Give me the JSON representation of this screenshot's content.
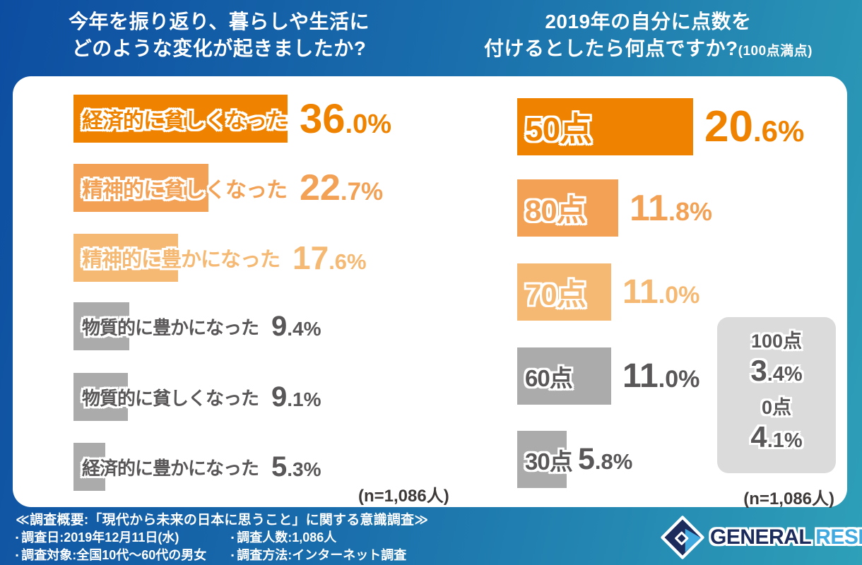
{
  "chart_data": [
    {
      "type": "bar",
      "orientation": "horizontal",
      "title": "今年を振り返り、暮らしや生活にどのような変化が起きましたか?",
      "categories": [
        "経済的に貧しくなった",
        "精神的に貧しくなった",
        "精神的に豊かになった",
        "物質的に豊かになった",
        "物質的に貧しくなった",
        "経済的に豊かになった"
      ],
      "values": [
        36.0,
        22.7,
        17.6,
        9.4,
        9.1,
        5.3
      ],
      "unit": "%",
      "n_label": "(n=1,086人)",
      "bar_colors": [
        "#EF8300",
        "#F2A155",
        "#F5B973",
        "#ABABAB",
        "#ABABAB",
        "#ABABAB"
      ]
    },
    {
      "type": "bar",
      "orientation": "horizontal",
      "title": "2019年の自分に点数を付けるとしたら何点ですか?(100点満点)",
      "categories": [
        "50点",
        "80点",
        "70点",
        "60点",
        "30点"
      ],
      "values": [
        20.6,
        11.8,
        11.0,
        11.0,
        5.8
      ],
      "annotations": [
        {
          "label": "100点",
          "value": 3.4
        },
        {
          "label": "0点",
          "value": 4.1
        }
      ],
      "unit": "%",
      "n_label": "(n=1,086人)",
      "bar_colors": [
        "#EF8300",
        "#F2A155",
        "#F5B973",
        "#ABABAB",
        "#ABABAB"
      ]
    }
  ],
  "header": {
    "left_title_line1": "今年を振り返り、暮らしや生活に",
    "left_title_line2": "どのような変化が起きましたか?",
    "right_title_line1": "2019年の自分に点数を",
    "right_title_line2": "付けるとしたら何点ですか?",
    "right_title_suffix": "(100点満点)"
  },
  "left_chart": {
    "bars": [
      {
        "label": "経済的に貧しくなった",
        "pct": 36.0,
        "int": "36",
        "dec": ".0%",
        "bar_color": "#EF8300",
        "text_color": "#EF8300"
      },
      {
        "label": "精神的に貧しくなった",
        "pct": 22.7,
        "int": "22",
        "dec": ".7%",
        "bar_color": "#F2A155",
        "text_color": "#F2A155"
      },
      {
        "label": "精神的に豊かになった",
        "pct": 17.6,
        "int": "17",
        "dec": ".6%",
        "bar_color": "#F5B973",
        "text_color": "#F5B973"
      },
      {
        "label": "物質的に豊かになった",
        "pct": 9.4,
        "int": "9",
        "dec": ".4%",
        "bar_color": "#ABABAB",
        "text_color": "#595757"
      },
      {
        "label": "物質的に貧しくなった",
        "pct": 9.1,
        "int": "9",
        "dec": ".1%",
        "bar_color": "#ABABAB",
        "text_color": "#595757"
      },
      {
        "label": "経済的に豊かになった",
        "pct": 5.3,
        "int": "5",
        "dec": ".3%",
        "bar_color": "#ABABAB",
        "text_color": "#595757"
      }
    ],
    "n_label": "(n=1,086人)"
  },
  "right_chart": {
    "bars": [
      {
        "label": "50点",
        "pct": 20.6,
        "int": "20",
        "dec": ".6%",
        "bar_color": "#EF8300",
        "text_color": "#EF8300"
      },
      {
        "label": "80点",
        "pct": 11.8,
        "int": "11",
        "dec": ".8%",
        "bar_color": "#F2A155",
        "text_color": "#F2A155"
      },
      {
        "label": "70点",
        "pct": 11.0,
        "int": "11",
        "dec": ".0%",
        "bar_color": "#F5B973",
        "text_color": "#F5B973"
      },
      {
        "label": "60点",
        "pct": 11.0,
        "int": "11",
        "dec": ".0%",
        "bar_color": "#ABABAB",
        "text_color": "#595757"
      },
      {
        "label": "30点",
        "pct": 5.8,
        "int": "5",
        "dec": ".8%",
        "bar_color": "#ABABAB",
        "text_color": "#595757"
      }
    ],
    "side_box": {
      "bg": "#DBDBDB",
      "text_color": "#595757",
      "items": [
        {
          "label": "100点",
          "int": "3",
          "dec": ".4%"
        },
        {
          "label": "0点",
          "int": "4",
          "dec": ".1%"
        }
      ]
    },
    "n_label": "(n=1,086人)"
  },
  "footer": {
    "headline": "≪調査概要:「現代から未来の日本に思うこと」に関する意識調査≫",
    "rows": [
      [
        {
          "bullet": "▪",
          "text": "調査日:2019年12月11日(水)"
        },
        {
          "bullet": "▪",
          "text": "調査人数:1,086人"
        }
      ],
      [
        {
          "bullet": "▪",
          "text": "調査対象:全国10代〜60代の男女"
        },
        {
          "bullet": "▪",
          "text": "調査方法:インターネット調査"
        }
      ]
    ]
  },
  "logo": {
    "word1": "GENERAL",
    "word2": "RESEARCH",
    "color1": "#1B2B5C",
    "color2": "#3FA9E0"
  },
  "colors": {
    "bg_start": "#0D4DA1",
    "bg_mid": "#1A6FAC",
    "bg_end": "#2EA0B8",
    "orange_dark": "#EF8300",
    "orange_mid": "#F2A155",
    "orange_light": "#F5B973",
    "gray_bar": "#ABABAB",
    "gray_box": "#DBDBDB",
    "gray_text": "#595757"
  }
}
